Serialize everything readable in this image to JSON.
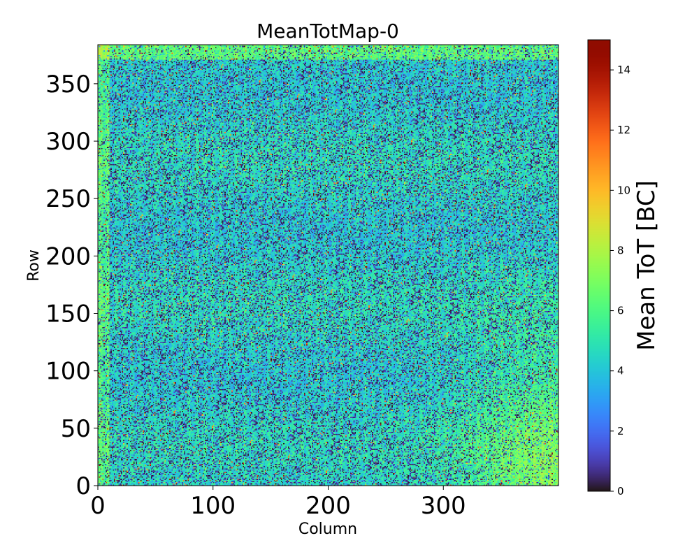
{
  "chart_data": {
    "type": "heatmap",
    "title": "MeanTotMap-0",
    "xlabel": "Column",
    "ylabel": "Row",
    "xlim": [
      0,
      400
    ],
    "ylim": [
      0,
      384
    ],
    "x_ticks": [
      0,
      100,
      200,
      300
    ],
    "y_ticks": [
      0,
      50,
      100,
      150,
      200,
      250,
      300,
      350
    ],
    "n_columns": 400,
    "n_rows": 384,
    "colorbar": {
      "label": "Mean ToT [BC]",
      "range": [
        0,
        15
      ],
      "ticks": [
        0,
        2,
        4,
        6,
        8,
        10,
        12,
        14
      ],
      "colormap": "turbo"
    },
    "description_of_values": {
      "typical_value": 5,
      "frequent_low_pixels": 0,
      "higher_values_regions": [
        "top edge rows ~370-384 (~6-7)",
        "left edge columns 0-10 (~6-7)",
        "bottom-right corner (~7-8)"
      ],
      "occasional_max": 15
    }
  }
}
